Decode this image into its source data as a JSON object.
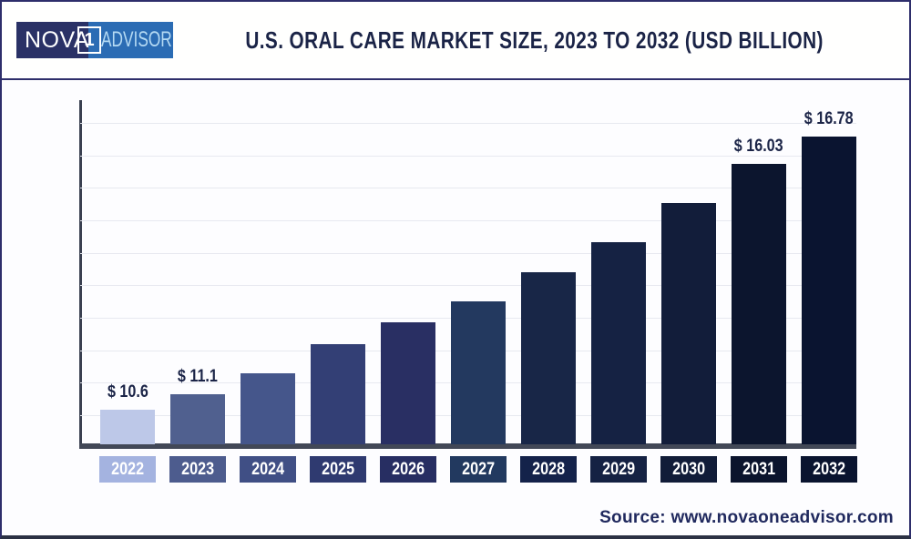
{
  "header": {
    "logo": {
      "part_nova": "NOVA",
      "part_one": "1",
      "part_advisor": "ADVISOR"
    },
    "title": "U.S. ORAL CARE MARKET SIZE, 2023 TO 2032 (USD BILLION)"
  },
  "chart_data": {
    "type": "bar",
    "title": "U.S. Oral Care Market Size, 2023 to 2032 (USD Billion)",
    "unit": "USD Billion",
    "categories": [
      "2022",
      "2023",
      "2024",
      "2025",
      "2026",
      "2027",
      "2028",
      "2029",
      "2030",
      "2031",
      "2032"
    ],
    "values": [
      10.6,
      11.1,
      11.62,
      12.17,
      12.74,
      13.34,
      13.97,
      14.63,
      15.31,
      16.03,
      16.78
    ],
    "data_labels": [
      "$ 10.6",
      "$ 11.1",
      null,
      null,
      null,
      null,
      null,
      null,
      null,
      "$ 16.03",
      "$ 16.78"
    ],
    "bar_colors": [
      "#bdc8e8",
      "#50608f",
      "#45568b",
      "#333f75",
      "#292f63",
      "#23395f",
      "#182647",
      "#152243",
      "#121d3a",
      "#0c152e",
      "#0a1430"
    ],
    "tick_colors": [
      "#a4b3e0",
      "#4d5c8e",
      "#404f85",
      "#2f3a70",
      "#272e62",
      "#22395f",
      "#14224a",
      "#152243",
      "#111c38",
      "#0b142d",
      "#0a142f"
    ],
    "ylim": [
      9.8,
      17.6
    ],
    "grid": true,
    "legend": false,
    "y_axis_labels_visible": false
  },
  "footer": {
    "source": "Source: www.novaoneadvisor.com"
  },
  "colors": {
    "title_navy": "#1b2447",
    "logo_navy": "#2a3166",
    "logo_blue": "#2b6cb4",
    "logo_advisor_text": "#b5daf3",
    "axis": "#424857",
    "gridline": "#e7e9f0",
    "border": "#2e2e6b",
    "source_text": "#20295e"
  }
}
